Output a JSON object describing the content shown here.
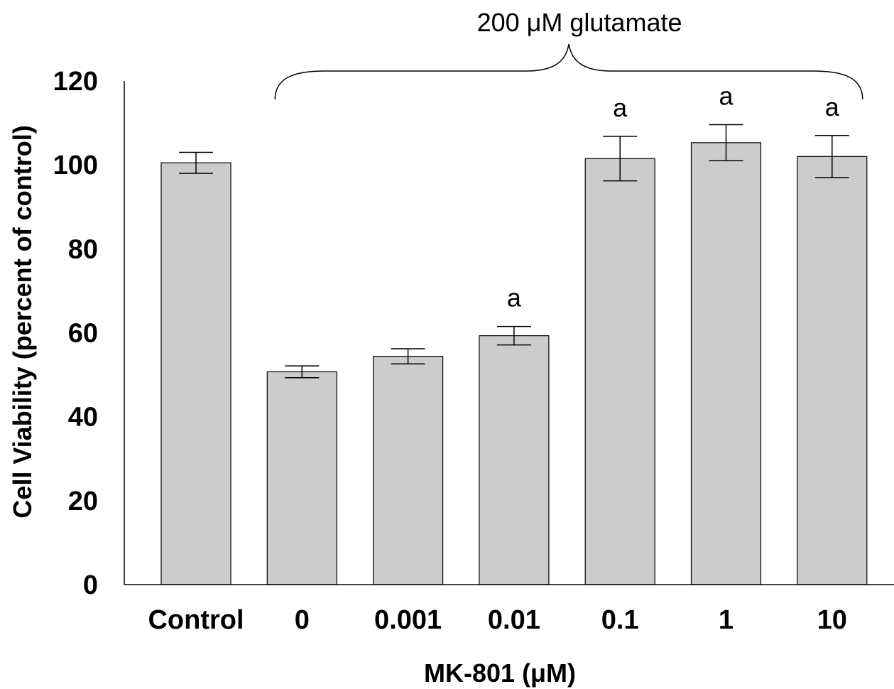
{
  "chart_data": {
    "type": "bar",
    "categories": [
      "Control",
      "0",
      "0.001",
      "0.01",
      "0.1",
      "1",
      "10"
    ],
    "values": [
      100.5,
      50.7,
      54.4,
      59.3,
      101.5,
      105.3,
      102.0
    ],
    "errors": [
      2.5,
      1.4,
      1.8,
      2.2,
      5.3,
      4.3,
      5.0
    ],
    "annotations": [
      "",
      "",
      "",
      "a",
      "a",
      "a",
      "a"
    ],
    "bracket": {
      "label": "200 μM glutamate",
      "from_category": "0",
      "to_category": "10"
    },
    "xlabel": "MK-801 (μM)",
    "ylabel": "Cell Viability (percent of control)",
    "ylim": [
      0,
      120
    ],
    "yticks": [
      0,
      20,
      40,
      60,
      80,
      100,
      120
    ],
    "bar_color": "#cccccc",
    "grid": false
  }
}
